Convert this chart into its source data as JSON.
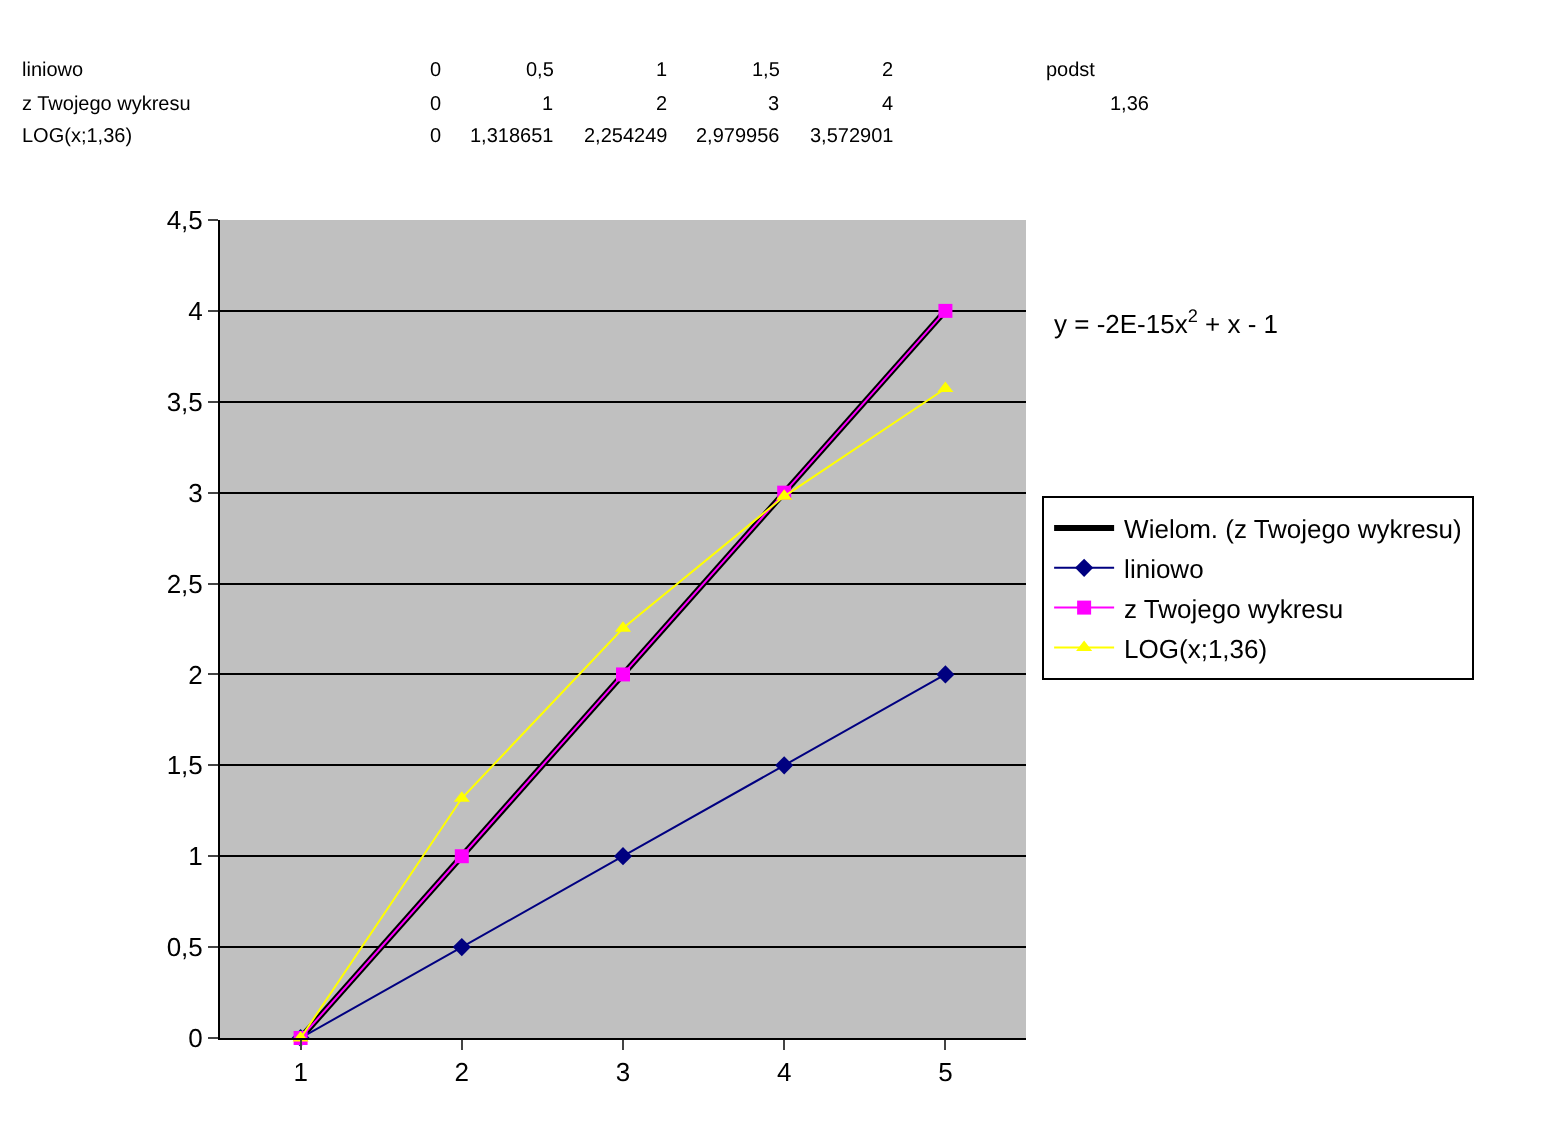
{
  "chart_data": {
    "type": "line",
    "x": [
      1,
      2,
      3,
      4,
      5
    ],
    "series": [
      {
        "name": "Wielom. (z Twojego wykresu)",
        "color": "#000000",
        "x": [
          1,
          5
        ],
        "values": [
          0,
          4
        ]
      },
      {
        "name": "liniowo",
        "color": "#000080",
        "marker": "diamond",
        "values": [
          0,
          0.5,
          1,
          1.5,
          2
        ]
      },
      {
        "name": "z Twojego wykresu",
        "color": "#ff00ff",
        "marker": "square",
        "values": [
          0,
          1,
          2,
          3,
          4
        ]
      },
      {
        "name": "LOG(x;1,36)",
        "color": "#ffff00",
        "marker": "triangle",
        "values": [
          0,
          1.318651,
          2.254249,
          2.979956,
          3.572901
        ]
      }
    ],
    "xlim": [
      0.5,
      5.5
    ],
    "xticks": [
      1,
      2,
      3,
      4,
      5
    ],
    "ylim": [
      0,
      4.5
    ],
    "yticks": [
      0,
      {
        "value": 0.5,
        "label": "0,5"
      },
      1,
      {
        "value": 1.5,
        "label": "1,5"
      },
      2,
      {
        "value": 2.5,
        "label": "2,5"
      },
      3,
      {
        "value": 3.5,
        "label": "3,5"
      },
      4,
      {
        "value": 4.5,
        "label": "4,5"
      }
    ],
    "grid": "y",
    "legend": "right",
    "annotations": [
      "y = -2E-15x$^{2}$ + x - 1",
      "liniowo",
      "0",
      "0,5",
      "1",
      "1,5",
      "2",
      "z Twojego wykresu",
      "0",
      "1",
      "2",
      "3",
      "4",
      "LOG(x;1,36)",
      "0",
      "1,318651",
      "2,254249",
      "2,979956",
      "3,572901",
      "podst",
      "1,36"
    ]
  }
}
